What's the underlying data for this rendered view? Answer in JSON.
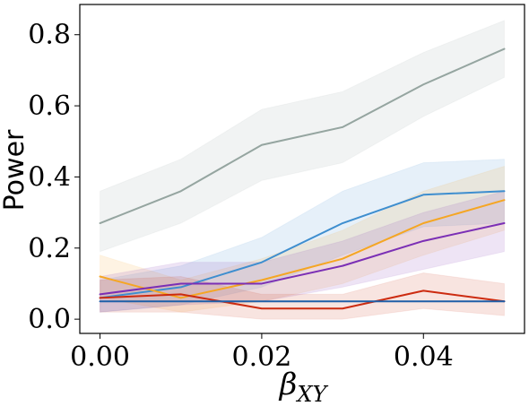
{
  "chart_data": {
    "type": "line",
    "title": "",
    "xlabel": "β",
    "xlabel_sub": "XY",
    "ylabel": "Power",
    "xlim": [
      -0.0025,
      0.0525
    ],
    "ylim": [
      -0.04,
      0.885
    ],
    "x": [
      0.0,
      0.01,
      0.02,
      0.03,
      0.04,
      0.05
    ],
    "xticks": [
      0.0,
      0.02,
      0.04
    ],
    "xtick_labels": [
      "0.00",
      "0.02",
      "0.04"
    ],
    "yticks": [
      0.0,
      0.2,
      0.4,
      0.6,
      0.8
    ],
    "ytick_labels": [
      "0.0",
      "0.2",
      "0.4",
      "0.6",
      "0.8"
    ],
    "grid": false,
    "legend": "none",
    "series": [
      {
        "color": "#95a5a0",
        "values": [
          0.27,
          0.36,
          0.49,
          0.54,
          0.66,
          0.76
        ],
        "lower": [
          0.19,
          0.27,
          0.39,
          0.44,
          0.57,
          0.68
        ],
        "upper": [
          0.36,
          0.45,
          0.59,
          0.64,
          0.75,
          0.84
        ]
      },
      {
        "color": "#3e8ecf",
        "values": [
          0.06,
          0.09,
          0.16,
          0.27,
          0.35,
          0.36
        ],
        "lower": [
          0.02,
          0.04,
          0.09,
          0.18,
          0.26,
          0.27
        ],
        "upper": [
          0.11,
          0.15,
          0.23,
          0.36,
          0.44,
          0.45
        ]
      },
      {
        "color": "#f5a623",
        "values": [
          0.12,
          0.06,
          0.11,
          0.17,
          0.27,
          0.335
        ],
        "lower": [
          0.06,
          0.02,
          0.05,
          0.1,
          0.18,
          0.25
        ],
        "upper": [
          0.18,
          0.11,
          0.17,
          0.25,
          0.36,
          0.43
        ]
      },
      {
        "color": "#7b2fb5",
        "values": [
          0.07,
          0.1,
          0.1,
          0.15,
          0.22,
          0.27
        ],
        "lower": [
          0.02,
          0.04,
          0.05,
          0.09,
          0.14,
          0.19
        ],
        "upper": [
          0.12,
          0.16,
          0.16,
          0.22,
          0.3,
          0.36
        ]
      },
      {
        "color": "#cc2b10",
        "values": [
          0.06,
          0.07,
          0.03,
          0.03,
          0.08,
          0.05
        ],
        "lower": [
          0.02,
          0.02,
          0.0,
          0.0,
          0.03,
          0.01
        ],
        "upper": [
          0.11,
          0.12,
          0.07,
          0.07,
          0.13,
          0.1
        ]
      },
      {
        "color": "#1f5fa8",
        "values": [
          0.05,
          0.05,
          0.05,
          0.05,
          0.05,
          0.05
        ],
        "lower": [
          0.05,
          0.05,
          0.05,
          0.05,
          0.05,
          0.05
        ],
        "upper": [
          0.05,
          0.05,
          0.05,
          0.05,
          0.05,
          0.05
        ]
      }
    ]
  }
}
